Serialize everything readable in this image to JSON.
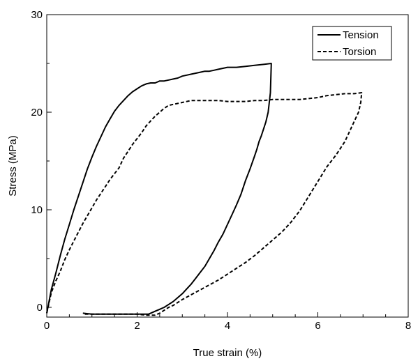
{
  "chart_data": {
    "type": "line",
    "title": "",
    "xlabel": "True strain (%)",
    "ylabel": "Stress (MPa)",
    "xlim": [
      0,
      8
    ],
    "ylim": [
      -1,
      30
    ],
    "xticks": [
      0,
      2,
      4,
      6,
      8
    ],
    "xtick_labels": [
      "0",
      "2",
      "4",
      "6",
      "8"
    ],
    "xminor": [
      0.5,
      1,
      1.5,
      2.5,
      3,
      3.5,
      4.5,
      5,
      5.5,
      6.5,
      7,
      7.5
    ],
    "yticks": [
      0,
      10,
      20,
      30
    ],
    "ytick_labels": [
      "0",
      "10",
      "20",
      "30"
    ],
    "yminor": [
      5,
      15,
      25
    ],
    "grid": false,
    "legend_position": "top-right",
    "series": [
      {
        "name": "Tension",
        "style": "solid",
        "color": "#000000",
        "x": [
          0,
          0.1,
          0.2,
          0.3,
          0.4,
          0.5,
          0.6,
          0.7,
          0.8,
          0.9,
          1.0,
          1.1,
          1.2,
          1.3,
          1.4,
          1.5,
          1.6,
          1.7,
          1.8,
          1.9,
          2.0,
          2.1,
          2.2,
          2.3,
          2.4,
          2.5,
          2.6,
          2.7,
          2.8,
          2.9,
          3.0,
          3.1,
          3.2,
          3.3,
          3.4,
          3.5,
          3.6,
          3.7,
          3.8,
          3.9,
          4.0,
          4.2,
          4.4,
          4.6,
          4.8,
          4.97,
          4.95,
          4.9,
          4.85,
          4.8,
          4.75,
          4.7,
          4.65,
          4.6,
          4.5,
          4.4,
          4.3,
          4.2,
          4.1,
          4.0,
          3.9,
          3.8,
          3.7,
          3.6,
          3.5,
          3.4,
          3.3,
          3.2,
          3.1,
          3.0,
          2.9,
          2.8,
          2.7,
          2.6,
          2.5,
          2.4,
          2.3,
          2.25,
          2.2,
          2.0,
          1.8,
          1.6,
          1.4,
          1.2,
          1.0,
          0.8
        ],
        "y": [
          -0.6,
          1.8,
          3.5,
          5.3,
          7.0,
          8.5,
          10.0,
          11.4,
          12.8,
          14.2,
          15.4,
          16.5,
          17.5,
          18.5,
          19.3,
          20.1,
          20.7,
          21.2,
          21.7,
          22.1,
          22.4,
          22.7,
          22.9,
          23.0,
          23.0,
          23.2,
          23.2,
          23.3,
          23.4,
          23.5,
          23.7,
          23.8,
          23.9,
          24.0,
          24.1,
          24.2,
          24.2,
          24.3,
          24.4,
          24.5,
          24.6,
          24.6,
          24.7,
          24.8,
          24.9,
          25.0,
          22.0,
          20.0,
          19.0,
          18.3,
          17.6,
          17.0,
          16.2,
          15.5,
          14.2,
          13.0,
          11.6,
          10.5,
          9.5,
          8.5,
          7.5,
          6.7,
          5.8,
          5.0,
          4.2,
          3.6,
          3.0,
          2.4,
          1.9,
          1.4,
          1.0,
          0.6,
          0.3,
          0.0,
          -0.2,
          -0.4,
          -0.6,
          -0.7,
          -0.7,
          -0.7,
          -0.7,
          -0.7,
          -0.7,
          -0.7,
          -0.7,
          -0.6
        ]
      },
      {
        "name": "Torsion",
        "style": "dashed",
        "color": "#000000",
        "x": [
          0,
          0.1,
          0.2,
          0.3,
          0.4,
          0.5,
          0.6,
          0.7,
          0.8,
          0.9,
          1.0,
          1.1,
          1.2,
          1.3,
          1.4,
          1.5,
          1.6,
          1.7,
          1.8,
          1.9,
          2.0,
          2.1,
          2.2,
          2.3,
          2.4,
          2.5,
          2.6,
          2.7,
          2.8,
          2.9,
          3.0,
          3.2,
          3.4,
          3.6,
          3.8,
          4.0,
          4.2,
          4.4,
          4.6,
          4.8,
          5.0,
          5.2,
          5.4,
          5.6,
          5.8,
          6.0,
          6.2,
          6.4,
          6.6,
          6.8,
          6.97,
          6.95,
          6.9,
          6.8,
          6.7,
          6.6,
          6.5,
          6.4,
          6.3,
          6.2,
          6.0,
          5.8,
          5.6,
          5.4,
          5.2,
          5.0,
          4.8,
          4.6,
          4.4,
          4.2,
          4.0,
          3.8,
          3.6,
          3.4,
          3.2,
          3.0,
          2.9,
          2.8,
          2.7,
          2.6,
          2.5,
          2.4,
          2.2,
          2.0,
          1.8,
          1.6,
          1.4,
          1.2,
          1.0,
          0.8
        ],
        "y": [
          -0.6,
          1.5,
          2.7,
          3.7,
          4.9,
          5.9,
          6.8,
          7.7,
          8.6,
          9.4,
          10.2,
          11.0,
          11.7,
          12.4,
          13.1,
          13.7,
          14.3,
          15.3,
          16.0,
          16.7,
          17.3,
          17.9,
          18.6,
          19.1,
          19.6,
          20.0,
          20.4,
          20.7,
          20.8,
          20.9,
          21.0,
          21.2,
          21.2,
          21.2,
          21.2,
          21.1,
          21.1,
          21.1,
          21.2,
          21.2,
          21.3,
          21.3,
          21.3,
          21.3,
          21.4,
          21.5,
          21.7,
          21.8,
          21.9,
          21.9,
          22.0,
          21.0,
          20.0,
          19.0,
          18.0,
          17.0,
          16.3,
          15.6,
          15.0,
          14.4,
          12.9,
          11.4,
          9.9,
          8.7,
          7.7,
          6.9,
          6.1,
          5.3,
          4.6,
          4.0,
          3.4,
          2.8,
          2.3,
          1.8,
          1.3,
          0.8,
          0.5,
          0.2,
          0.0,
          -0.3,
          -0.6,
          -0.8,
          -0.8,
          -0.7,
          -0.7,
          -0.7,
          -0.7,
          -0.7,
          -0.7,
          -0.7
        ]
      }
    ]
  }
}
